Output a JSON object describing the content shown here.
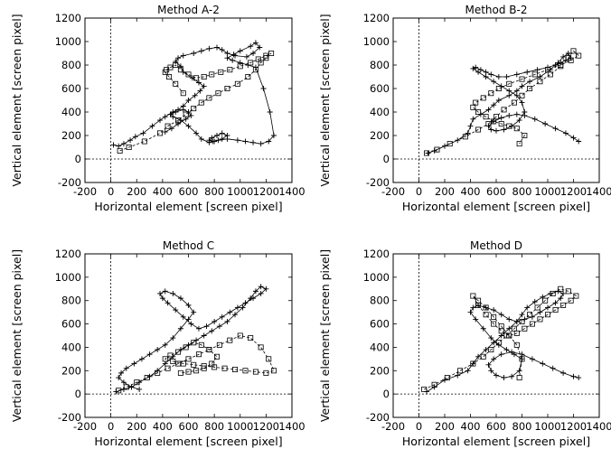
{
  "charts": [
    {
      "type": "line",
      "title": "Method A-2",
      "xlabel": "Horizontal element [screen pixel]",
      "ylabel": "Vertical element [screen pixel]",
      "xlim": [
        -200,
        1400
      ],
      "ylim": [
        -200,
        1200
      ],
      "xticks": [
        -200,
        0,
        200,
        400,
        600,
        800,
        1000,
        1200,
        1400
      ],
      "yticks": [
        -200,
        0,
        200,
        400,
        600,
        800,
        1000,
        1200
      ],
      "grid": false,
      "zero_lines": "dashed",
      "series": [
        {
          "style": "solid",
          "marker": "plus",
          "x": [
            20,
            60,
            100,
            150,
            190,
            250,
            320,
            380,
            420,
            480,
            520,
            560,
            600,
            650,
            690,
            720,
            680,
            630,
            560,
            540,
            500,
            520,
            560,
            640,
            700,
            760,
            820,
            860,
            900,
            960,
            1050,
            1100,
            1150,
            1120,
            1080,
            1000,
            950,
            900,
            940,
            1000,
            1060,
            1120,
            1180,
            1230,
            1260,
            1220,
            1160,
            1100,
            1040,
            980,
            900,
            830,
            790,
            760,
            780,
            820,
            860,
            900,
            860,
            800,
            760,
            700,
            660,
            600,
            540,
            480,
            460,
            500,
            560,
            600,
            620,
            580,
            520,
            470,
            420
          ],
          "y": [
            120,
            110,
            130,
            160,
            190,
            220,
            280,
            330,
            360,
            400,
            420,
            450,
            500,
            540,
            580,
            620,
            650,
            690,
            740,
            790,
            830,
            860,
            880,
            900,
            920,
            940,
            950,
            930,
            900,
            880,
            870,
            900,
            950,
            990,
            960,
            920,
            890,
            860,
            840,
            820,
            800,
            780,
            600,
            400,
            200,
            150,
            130,
            140,
            150,
            160,
            170,
            160,
            150,
            160,
            180,
            200,
            220,
            200,
            170,
            150,
            140,
            170,
            220,
            280,
            330,
            360,
            380,
            400,
            420,
            400,
            370,
            340,
            300,
            260,
            230
          ]
        },
        {
          "style": "dashed",
          "marker": "square",
          "x": [
            70,
            140,
            260,
            380,
            440,
            520,
            580,
            640,
            700,
            760,
            830,
            900,
            980,
            1060,
            1120,
            1160,
            1200,
            1240,
            1200,
            1140,
            1080,
            1000,
            920,
            850,
            780,
            720,
            660,
            600,
            540,
            500,
            460,
            430,
            420,
            450,
            500,
            560
          ],
          "y": [
            70,
            100,
            150,
            220,
            280,
            330,
            380,
            430,
            480,
            520,
            560,
            600,
            640,
            700,
            760,
            820,
            860,
            900,
            880,
            850,
            820,
            790,
            760,
            740,
            720,
            700,
            690,
            720,
            760,
            800,
            780,
            760,
            740,
            700,
            640,
            560
          ]
        }
      ]
    },
    {
      "type": "line",
      "title": "Method B-2",
      "xlabel": "Horizontal element [screen pixel]",
      "ylabel": "Vertical element [screen pixel]",
      "xlim": [
        -200,
        1400
      ],
      "ylim": [
        -200,
        1200
      ],
      "xticks": [
        -200,
        0,
        200,
        400,
        600,
        800,
        1000,
        1200,
        1400
      ],
      "yticks": [
        -200,
        0,
        200,
        400,
        600,
        800,
        1000,
        1200
      ],
      "grid": false,
      "zero_lines": "dashed",
      "series": [
        {
          "style": "solid",
          "marker": "plus",
          "x": [
            70,
            120,
            200,
            300,
            380,
            400,
            420,
            480,
            540,
            580,
            620,
            700,
            760,
            800,
            860,
            940,
            1020,
            1080,
            1120,
            1160,
            1180,
            1140,
            1100,
            1060,
            1000,
            920,
            840,
            760,
            680,
            620,
            560,
            520,
            480,
            440,
            420,
            460,
            520,
            580,
            640,
            700,
            760,
            800,
            820,
            780,
            720,
            660,
            600,
            560,
            540,
            580,
            640,
            700,
            760,
            820,
            900,
            980,
            1060,
            1140,
            1200,
            1240
          ],
          "y": [
            50,
            70,
            110,
            160,
            220,
            280,
            340,
            380,
            420,
            460,
            500,
            540,
            580,
            620,
            660,
            700,
            760,
            820,
            870,
            900,
            860,
            840,
            820,
            800,
            780,
            760,
            740,
            720,
            700,
            700,
            720,
            740,
            760,
            780,
            770,
            740,
            700,
            660,
            620,
            580,
            540,
            480,
            400,
            330,
            280,
            250,
            240,
            250,
            280,
            320,
            350,
            370,
            380,
            370,
            340,
            300,
            260,
            220,
            180,
            150
          ]
        },
        {
          "style": "dashed",
          "marker": "square",
          "x": [
            60,
            140,
            240,
            360,
            460,
            540,
            600,
            660,
            740,
            800,
            860,
            940,
            1020,
            1100,
            1160,
            1200,
            1240,
            1180,
            1100,
            1000,
            900,
            800,
            700,
            620,
            560,
            500,
            440,
            420,
            460,
            520,
            580,
            640,
            700,
            760,
            820,
            780
          ],
          "y": [
            50,
            80,
            130,
            190,
            250,
            300,
            360,
            420,
            480,
            540,
            600,
            660,
            720,
            790,
            860,
            920,
            880,
            840,
            800,
            760,
            720,
            680,
            640,
            600,
            560,
            520,
            480,
            440,
            400,
            360,
            320,
            300,
            280,
            260,
            200,
            130
          ]
        }
      ]
    },
    {
      "type": "line",
      "title": "Method C",
      "xlabel": "Horizontal element [screen pixel]",
      "ylabel": "Vertical element [screen pixel]",
      "xlim": [
        -200,
        1400
      ],
      "ylim": [
        -200,
        1200
      ],
      "xticks": [
        -200,
        0,
        200,
        400,
        600,
        800,
        1000,
        1200,
        1400
      ],
      "yticks": [
        -200,
        0,
        200,
        400,
        600,
        800,
        1000,
        1200
      ],
      "grid": false,
      "zero_lines": "dashed",
      "series": [
        {
          "style": "solid",
          "marker": "plus",
          "x": [
            40,
            100,
            160,
            220,
            300,
            360,
            420,
            480,
            540,
            600,
            660,
            720,
            780,
            840,
            900,
            960,
            1020,
            1080,
            1120,
            1160,
            1200,
            1160,
            1100,
            1040,
            980,
            920,
            860,
            800,
            740,
            680,
            620,
            560,
            500,
            440,
            400,
            380,
            420,
            480,
            540,
            600,
            640,
            600,
            540,
            480,
            420,
            360,
            300,
            240,
            180,
            120,
            80,
            60,
            100,
            160,
            220
          ],
          "y": [
            20,
            40,
            60,
            100,
            150,
            200,
            260,
            320,
            380,
            420,
            460,
            500,
            540,
            580,
            620,
            680,
            740,
            820,
            880,
            920,
            900,
            860,
            820,
            780,
            740,
            700,
            660,
            620,
            580,
            560,
            600,
            660,
            720,
            780,
            820,
            860,
            880,
            860,
            820,
            760,
            700,
            640,
            560,
            480,
            420,
            380,
            340,
            300,
            260,
            220,
            180,
            140,
            100,
            60,
            40
          ]
        },
        {
          "style": "dashed",
          "marker": "square",
          "x": [
            60,
            120,
            200,
            280,
            360,
            440,
            520,
            600,
            680,
            760,
            840,
            920,
            1000,
            1080,
            1160,
            1220,
            1260,
            1200,
            1120,
            1040,
            960,
            880,
            800,
            720,
            640,
            560,
            480,
            420,
            460,
            520,
            580,
            640,
            700,
            760,
            820,
            780,
            720,
            660,
            600,
            540
          ],
          "y": [
            30,
            60,
            100,
            140,
            180,
            220,
            260,
            300,
            340,
            380,
            420,
            460,
            500,
            480,
            400,
            300,
            200,
            180,
            190,
            200,
            210,
            220,
            230,
            240,
            250,
            260,
            280,
            300,
            330,
            360,
            400,
            440,
            420,
            380,
            320,
            260,
            220,
            200,
            190,
            180
          ]
        }
      ]
    },
    {
      "type": "line",
      "title": "Method D",
      "xlabel": "Horizontal element [screen pixel]",
      "ylabel": "Vertical element [screen pixel]",
      "xlim": [
        -200,
        1400
      ],
      "ylim": [
        -200,
        1200
      ],
      "xticks": [
        -200,
        0,
        200,
        400,
        600,
        800,
        1000,
        1200,
        1400
      ],
      "yticks": [
        -200,
        0,
        200,
        400,
        600,
        800,
        1000,
        1200
      ],
      "grid": false,
      "zero_lines": "dashed",
      "series": [
        {
          "style": "solid",
          "marker": "plus",
          "x": [
            60,
            120,
            200,
            300,
            380,
            420,
            460,
            520,
            580,
            640,
            700,
            760,
            800,
            840,
            900,
            960,
            1020,
            1080,
            1120,
            1100,
            1060,
            1000,
            940,
            880,
            820,
            760,
            700,
            640,
            580,
            520,
            460,
            420,
            400,
            440,
            500,
            560,
            620,
            680,
            740,
            800,
            780,
            720,
            660,
            600,
            560,
            540,
            580,
            640,
            720,
            800,
            880,
            960,
            1040,
            1120,
            1200,
            1240
          ],
          "y": [
            20,
            60,
            120,
            160,
            200,
            260,
            320,
            380,
            440,
            500,
            560,
            620,
            680,
            740,
            790,
            830,
            860,
            880,
            860,
            820,
            780,
            740,
            700,
            660,
            640,
            620,
            640,
            680,
            720,
            740,
            760,
            740,
            700,
            640,
            560,
            480,
            420,
            380,
            340,
            300,
            200,
            150,
            140,
            160,
            200,
            250,
            300,
            340,
            360,
            340,
            300,
            260,
            220,
            180,
            150,
            140
          ]
        },
        {
          "style": "dashed",
          "marker": "square",
          "x": [
            40,
            120,
            220,
            320,
            420,
            500,
            560,
            620,
            680,
            740,
            800,
            860,
            920,
            980,
            1040,
            1100,
            1160,
            1220,
            1180,
            1120,
            1060,
            1000,
            940,
            880,
            820,
            760,
            700,
            640,
            580,
            520,
            460,
            420,
            460,
            520,
            580,
            640,
            700,
            760,
            800,
            780
          ],
          "y": [
            40,
            80,
            140,
            200,
            260,
            320,
            380,
            440,
            500,
            560,
            620,
            680,
            740,
            800,
            860,
            900,
            880,
            840,
            800,
            760,
            720,
            680,
            640,
            600,
            560,
            520,
            500,
            540,
            600,
            680,
            760,
            840,
            800,
            740,
            660,
            580,
            500,
            420,
            300,
            140
          ]
        }
      ]
    }
  ]
}
